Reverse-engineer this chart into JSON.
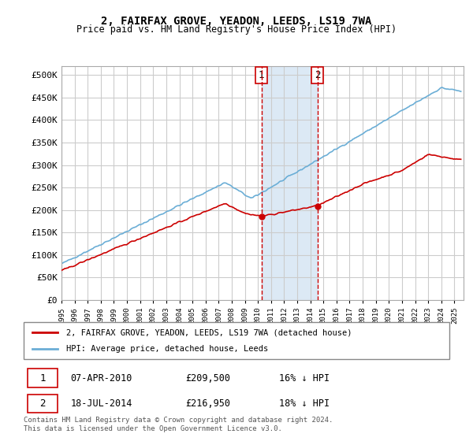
{
  "title": "2, FAIRFAX GROVE, YEADON, LEEDS, LS19 7WA",
  "subtitle": "Price paid vs. HM Land Registry's House Price Index (HPI)",
  "ylabel_ticks": [
    "£0",
    "£50K",
    "£100K",
    "£150K",
    "£200K",
    "£250K",
    "£300K",
    "£350K",
    "£400K",
    "£450K",
    "£500K"
  ],
  "ytick_vals": [
    0,
    50000,
    100000,
    150000,
    200000,
    250000,
    300000,
    350000,
    400000,
    450000,
    500000
  ],
  "ylim": [
    0,
    520000
  ],
  "sale1": {
    "date_num": 2010.27,
    "price": 209500,
    "label": "1"
  },
  "sale2": {
    "date_num": 2014.55,
    "price": 216950,
    "label": "2"
  },
  "legend_line1": "2, FAIRFAX GROVE, YEADON, LEEDS, LS19 7WA (detached house)",
  "legend_line2": "HPI: Average price, detached house, Leeds",
  "table_rows": [
    [
      "1",
      "07-APR-2010",
      "£209,500",
      "16% ↓ HPI"
    ],
    [
      "2",
      "18-JUL-2014",
      "£216,950",
      "18% ↓ HPI"
    ]
  ],
  "footnote": "Contains HM Land Registry data © Crown copyright and database right 2024.\nThis data is licensed under the Open Government Licence v3.0.",
  "hpi_color": "#6baed6",
  "sale_color": "#cc0000",
  "background_color": "#ffffff",
  "shaded_color": "#dce9f5",
  "vline_color": "#cc0000"
}
